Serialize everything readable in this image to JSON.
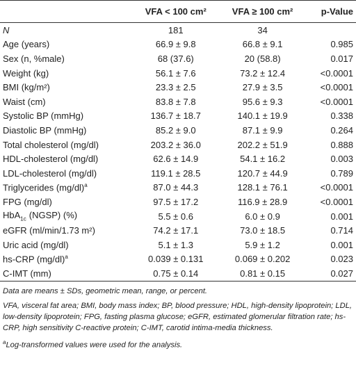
{
  "table": {
    "header": [
      "",
      "VFA < 100 cm²",
      "VFA ≥ 100 cm²",
      "p-Value"
    ],
    "rows": [
      {
        "label": "N",
        "cells": [
          "181",
          "34",
          ""
        ]
      },
      {
        "label": "Age (years)",
        "cells": [
          "66.9 ± 9.8",
          "66.8 ± 9.1",
          "0.985"
        ]
      },
      {
        "label": "Sex (n, %male)",
        "cells": [
          "68 (37.6)",
          "20 (58.8)",
          "0.017"
        ]
      },
      {
        "label": "Weight (kg)",
        "cells": [
          "56.1 ± 7.6",
          "73.2 ± 12.4",
          "<0.0001"
        ]
      },
      {
        "label": "BMI (kg/m²)",
        "cells": [
          "23.3 ± 2.5",
          "27.9 ± 3.5",
          "<0.0001"
        ]
      },
      {
        "label": "Waist (cm)",
        "cells": [
          "83.8 ± 7.8",
          "95.6 ± 9.3",
          "<0.0001"
        ]
      },
      {
        "label": "Systolic BP (mmHg)",
        "cells": [
          "136.7 ± 18.7",
          "140.1 ± 19.9",
          "0.338"
        ]
      },
      {
        "label": "Diastolic BP (mmHg)",
        "cells": [
          "85.2 ± 9.0",
          "87.1 ± 9.9",
          "0.264"
        ]
      },
      {
        "label": "Total cholesterol (mg/dl)",
        "cells": [
          "203.2 ± 36.0",
          "202.2 ± 51.9",
          "0.888"
        ]
      },
      {
        "label": "HDL-cholesterol (mg/dl)",
        "cells": [
          "62.6 ± 14.9",
          "54.1 ± 16.2",
          "0.003"
        ]
      },
      {
        "label": "LDL-cholesterol (mg/dl)",
        "cells": [
          "119.1 ± 28.5",
          "120.7 ± 44.9",
          "0.789"
        ]
      },
      {
        "label": "Triglycerides (mg/dl)",
        "sup": "a",
        "cells": [
          "87.0 ± 44.3",
          "128.1 ± 76.1",
          "<0.0001"
        ]
      },
      {
        "label": "FPG (mg/dl)",
        "cells": [
          "97.5 ± 17.2",
          "116.9 ± 28.9",
          "<0.0001"
        ]
      },
      {
        "label": "HbA",
        "sub": "1c",
        "tail": "(NGSP) (%)",
        "cells": [
          "5.5 ± 0.6",
          "6.0 ± 0.9",
          "0.001"
        ]
      },
      {
        "label": "eGFR (ml/min/1.73 m²)",
        "cells": [
          "74.2 ± 17.1",
          "73.0 ± 18.5",
          "0.714"
        ]
      },
      {
        "label": "Uric acid (mg/dl)",
        "cells": [
          "5.1 ± 1.3",
          "5.9 ± 1.2",
          "0.001"
        ]
      },
      {
        "label": "hs-CRP (mg/dl)",
        "sup": "a",
        "cells": [
          "0.039 ± 0.131",
          "0.069 ± 0.202",
          "0.023"
        ]
      },
      {
        "label": "C-IMT (mm)",
        "cells": [
          "0.75 ± 0.14",
          "0.81 ± 0.15",
          "0.027"
        ]
      }
    ],
    "notes": [
      {
        "text": "Data are means ± SDs, geometric mean, range, or percent."
      },
      {
        "text": "VFA, visceral fat area; BMI, body mass index; BP, blood pressure; HDL, high-density lipoprotein; LDL, low-density lipoprotein; FPG, fasting plasma glucose; eGFR, estimated glomerular filtration rate; hs-CRP, high sensitivity C-reactive protein; C-IMT, carotid intima-media thickness."
      },
      {
        "sup": "a",
        "text": "Log-transformed values were used for the analysis."
      }
    ]
  }
}
